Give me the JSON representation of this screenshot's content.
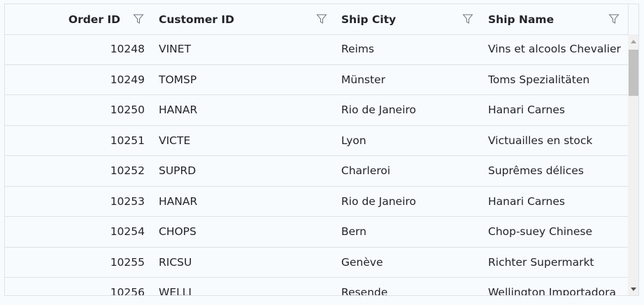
{
  "columns": [
    {
      "label": "Order ID",
      "filter_icon": "funnel-icon"
    },
    {
      "label": "Customer ID",
      "filter_icon": "funnel-icon"
    },
    {
      "label": "Ship City",
      "filter_icon": "funnel-icon"
    },
    {
      "label": "Ship Name",
      "filter_icon": "funnel-icon"
    }
  ],
  "rows": [
    [
      "10248",
      "VINET",
      "Reims",
      "Vins et alcools Chevalier"
    ],
    [
      "10249",
      "TOMSP",
      "Münster",
      "Toms Spezialitäten"
    ],
    [
      "10250",
      "HANAR",
      "Rio de Janeiro",
      "Hanari Carnes"
    ],
    [
      "10251",
      "VICTE",
      "Lyon",
      "Victuailles en stock"
    ],
    [
      "10252",
      "SUPRD",
      "Charleroi",
      "Suprêmes délices"
    ],
    [
      "10253",
      "HANAR",
      "Rio de Janeiro",
      "Hanari Carnes"
    ],
    [
      "10254",
      "CHOPS",
      "Bern",
      "Chop-suey Chinese"
    ],
    [
      "10255",
      "RICSU",
      "Genève",
      "Richter Supermarkt"
    ],
    [
      "10256",
      "WELLI",
      "Resende",
      "Wellington Importadora"
    ]
  ]
}
